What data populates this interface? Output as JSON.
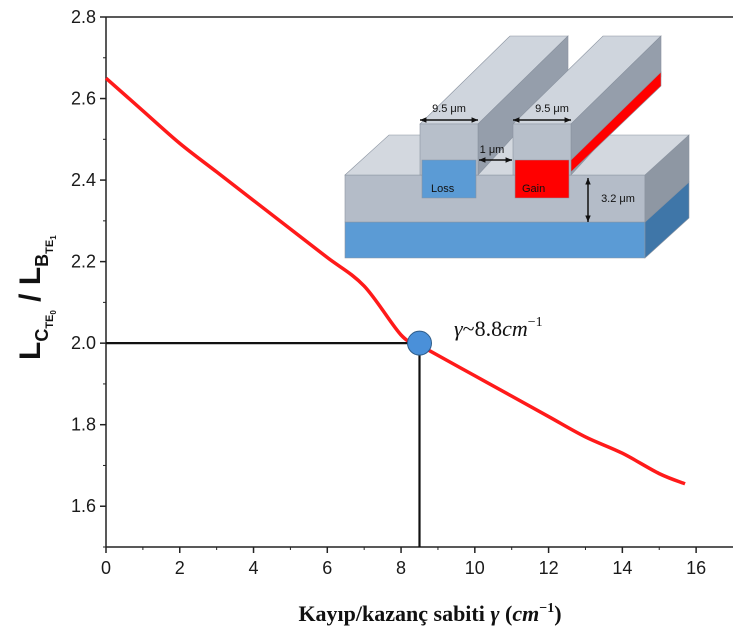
{
  "chart_data": {
    "type": "line",
    "xlabel_text": "Kayıp/kazanç sabiti ",
    "xlabel_gamma": "γ",
    "xlabel_unit_open": " (",
    "xlabel_unit": "cm",
    "xlabel_unit_exp": "−1",
    "xlabel_unit_close": ")",
    "ylabel": {
      "main_a": "L",
      "sub_a": "C",
      "subsub_a": "TE",
      "subsubsub_a": "0",
      "slash": " / ",
      "main_b": "L",
      "sub_b": "B",
      "subsub_b": "TE",
      "subsubsub_b": "1"
    },
    "xlim": [
      0,
      17
    ],
    "ylim": [
      1.5,
      2.8
    ],
    "x_ticks": [
      0,
      2,
      4,
      6,
      8,
      10,
      12,
      14,
      16
    ],
    "x_tick_labels": [
      "0",
      "2",
      "4",
      "6",
      "8",
      "10",
      "12",
      "14",
      "16"
    ],
    "y_ticks": [
      1.6,
      1.8,
      2.0,
      2.2,
      2.4,
      2.6,
      2.8
    ],
    "y_tick_labels": [
      "1.6",
      "1.8",
      "2.0",
      "2.2",
      "2.4",
      "2.6",
      "2.8"
    ],
    "series": [
      {
        "color": "#ff1a1a",
        "x": [
          0,
          1,
          2,
          3,
          4,
          5,
          6,
          7,
          8,
          8.5,
          9,
          10,
          11,
          12,
          13,
          14,
          15,
          15.7
        ],
        "y": [
          2.65,
          2.57,
          2.49,
          2.42,
          2.35,
          2.28,
          2.21,
          2.14,
          2.02,
          1.995,
          1.97,
          1.92,
          1.87,
          1.82,
          1.77,
          1.73,
          1.68,
          1.655
        ]
      }
    ],
    "marker": {
      "x": 8.5,
      "y": 2.0,
      "color": "#4a90d9"
    },
    "annotation": {
      "gamma": "γ",
      "approx": "~8.8",
      "unit": "cm",
      "exp": "−1"
    }
  },
  "inset": {
    "width_label_left": "9.5 μm",
    "width_label_right": "9.5 μm",
    "gap_label": "1 μm",
    "height_label": "3.2 μm",
    "loss_label": "Loss",
    "gain_label": "Gain",
    "colors": {
      "loss": "#5b9bd5",
      "gain": "#ff0000",
      "substrate": "#5b9bd5",
      "cladding": "#b4bcc8"
    }
  }
}
